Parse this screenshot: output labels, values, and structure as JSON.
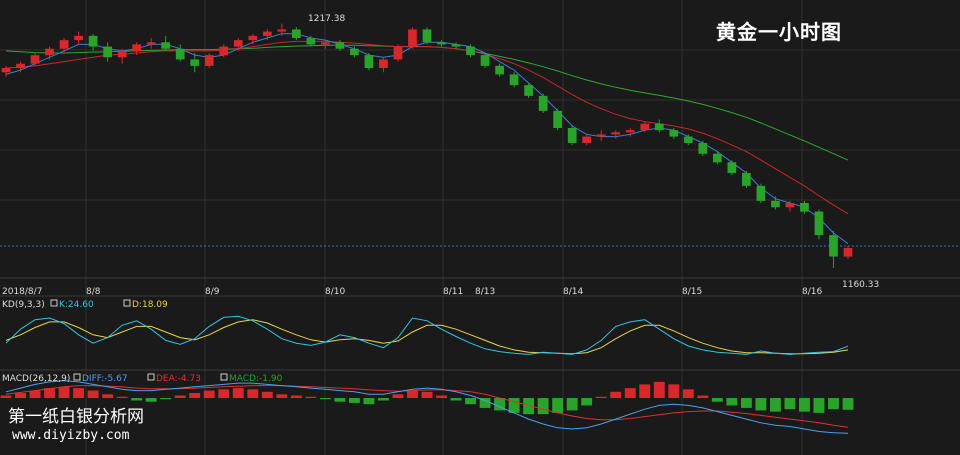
{
  "chart_title": "黄金一小时图",
  "watermark": {
    "name": "第一纸白银分析网",
    "url": "www.diyizby.com"
  },
  "colors": {
    "background": "#1a1a1a",
    "grid": "#2e2e2e",
    "up": "#d9282c",
    "down": "#29a329",
    "ma_fast": "#3a7fd8",
    "ma_mid": "#c8262a",
    "ma_slow": "#2fa82f",
    "k_line": "#34c4e0",
    "d_line": "#e8d44a",
    "diff_line": "#4aa0f0",
    "dea_line": "#e03030",
    "ref_line": "#3d6fb0",
    "axis_text": "#dddddd"
  },
  "chart_data": {
    "type": "candlestick",
    "x_dates": [
      "2018/8/7",
      "8/8",
      "8/9",
      "8/10",
      "8/11",
      "8/13",
      "8/14",
      "8/15",
      "8/16"
    ],
    "annotations": {
      "high_label": "1217.38",
      "low_label": "1160.33"
    },
    "price_ohlc": [
      [
        1206.0,
        1207.5,
        1205.0,
        1207.0
      ],
      [
        1207.0,
        1208.5,
        1206.0,
        1208.0
      ],
      [
        1208.0,
        1210.5,
        1207.5,
        1210.0
      ],
      [
        1210.0,
        1212.0,
        1209.0,
        1211.5
      ],
      [
        1211.5,
        1214.0,
        1210.5,
        1213.5
      ],
      [
        1213.5,
        1215.5,
        1212.5,
        1214.5
      ],
      [
        1214.5,
        1215.0,
        1211.0,
        1212.0
      ],
      [
        1212.0,
        1213.0,
        1208.5,
        1209.5
      ],
      [
        1209.5,
        1211.5,
        1208.0,
        1211.0
      ],
      [
        1211.0,
        1213.0,
        1210.0,
        1212.5
      ],
      [
        1212.5,
        1214.0,
        1211.5,
        1213.0
      ],
      [
        1213.0,
        1214.5,
        1211.0,
        1211.5
      ],
      [
        1211.5,
        1212.5,
        1208.5,
        1209.0
      ],
      [
        1209.0,
        1210.5,
        1206.0,
        1207.5
      ],
      [
        1207.5,
        1210.5,
        1207.0,
        1210.0
      ],
      [
        1210.0,
        1212.5,
        1209.5,
        1212.0
      ],
      [
        1212.0,
        1214.0,
        1211.0,
        1213.5
      ],
      [
        1213.5,
        1215.0,
        1212.5,
        1214.5
      ],
      [
        1214.5,
        1216.0,
        1213.5,
        1215.5
      ],
      [
        1215.5,
        1217.38,
        1214.5,
        1216.0
      ],
      [
        1216.0,
        1216.5,
        1213.5,
        1214.0
      ],
      [
        1214.0,
        1214.5,
        1212.0,
        1212.5
      ],
      [
        1212.5,
        1213.5,
        1211.5,
        1213.0
      ],
      [
        1213.0,
        1213.5,
        1211.0,
        1211.5
      ],
      [
        1211.5,
        1212.0,
        1209.5,
        1210.0
      ],
      [
        1210.0,
        1210.5,
        1206.5,
        1207.0
      ],
      [
        1207.0,
        1209.5,
        1206.0,
        1209.0
      ],
      [
        1209.0,
        1212.5,
        1208.5,
        1212.0
      ],
      [
        1212.0,
        1216.5,
        1211.5,
        1216.0
      ],
      [
        1216.0,
        1216.5,
        1212.5,
        1213.0
      ],
      [
        1213.0,
        1213.5,
        1212.0,
        1212.5
      ],
      [
        1212.5,
        1213.0,
        1211.5,
        1212.0
      ],
      [
        1212.0,
        1212.5,
        1209.5,
        1210.0
      ],
      [
        1210.0,
        1210.5,
        1207.0,
        1207.5
      ],
      [
        1207.5,
        1208.0,
        1205.0,
        1205.5
      ],
      [
        1205.5,
        1206.0,
        1202.5,
        1203.0
      ],
      [
        1203.0,
        1203.5,
        1200.0,
        1200.5
      ],
      [
        1200.5,
        1201.0,
        1196.5,
        1197.0
      ],
      [
        1197.0,
        1197.5,
        1192.5,
        1193.0
      ],
      [
        1193.0,
        1193.5,
        1189.0,
        1189.5
      ],
      [
        1189.5,
        1191.5,
        1189.0,
        1191.0
      ],
      [
        1191.0,
        1192.5,
        1190.0,
        1191.5
      ],
      [
        1191.5,
        1192.5,
        1190.5,
        1192.0
      ],
      [
        1192.0,
        1193.0,
        1191.0,
        1192.5
      ],
      [
        1192.5,
        1194.5,
        1192.0,
        1194.0
      ],
      [
        1194.0,
        1195.0,
        1192.0,
        1192.5
      ],
      [
        1192.5,
        1193.0,
        1190.5,
        1191.0
      ],
      [
        1191.0,
        1191.5,
        1189.0,
        1189.5
      ],
      [
        1189.5,
        1190.0,
        1186.5,
        1187.0
      ],
      [
        1187.0,
        1187.5,
        1184.5,
        1185.0
      ],
      [
        1185.0,
        1185.5,
        1182.0,
        1182.5
      ],
      [
        1182.5,
        1183.0,
        1179.0,
        1179.5
      ],
      [
        1179.5,
        1180.0,
        1175.5,
        1176.0
      ],
      [
        1176.0,
        1177.0,
        1174.0,
        1174.5
      ],
      [
        1174.5,
        1176.0,
        1173.5,
        1175.5
      ],
      [
        1175.5,
        1176.0,
        1173.0,
        1173.5
      ],
      [
        1173.5,
        1174.0,
        1167.0,
        1168.0
      ],
      [
        1168.0,
        1169.0,
        1160.33,
        1163.0
      ],
      [
        1163.0,
        1165.5,
        1162.5,
        1165.0
      ]
    ],
    "ma_fast": [
      1205.5,
      1206.5,
      1208.0,
      1209.5,
      1211.0,
      1212.5,
      1212.5,
      1211.5,
      1211.0,
      1211.5,
      1212.5,
      1212.5,
      1211.5,
      1210.0,
      1209.5,
      1210.0,
      1211.5,
      1213.0,
      1214.0,
      1215.0,
      1215.0,
      1214.0,
      1213.5,
      1212.5,
      1211.5,
      1210.0,
      1209.5,
      1210.0,
      1212.0,
      1213.0,
      1213.0,
      1212.5,
      1212.0,
      1210.5,
      1208.5,
      1206.5,
      1203.5,
      1200.5,
      1197.0,
      1193.5,
      1191.5,
      1191.0,
      1191.0,
      1191.5,
      1192.5,
      1193.0,
      1192.5,
      1191.0,
      1189.5,
      1187.5,
      1185.0,
      1182.5,
      1179.0,
      1176.5,
      1175.5,
      1174.5,
      1172.0,
      1168.5,
      1166.0
    ],
    "ma_mid": [
      1207.0,
      1207.2,
      1207.5,
      1208.0,
      1208.5,
      1209.0,
      1209.5,
      1210.0,
      1210.2,
      1210.5,
      1210.8,
      1211.0,
      1211.0,
      1211.0,
      1211.0,
      1211.2,
      1211.5,
      1212.0,
      1212.5,
      1213.0,
      1213.2,
      1213.2,
      1213.2,
      1213.0,
      1212.8,
      1212.5,
      1212.2,
      1212.0,
      1212.0,
      1212.0,
      1211.8,
      1211.5,
      1211.0,
      1210.2,
      1209.2,
      1208.0,
      1206.5,
      1204.8,
      1202.8,
      1200.8,
      1199.0,
      1197.5,
      1196.2,
      1195.2,
      1194.5,
      1194.0,
      1193.5,
      1192.8,
      1191.8,
      1190.5,
      1189.0,
      1187.5,
      1185.5,
      1183.5,
      1181.5,
      1179.5,
      1177.2,
      1175.0,
      1173.0
    ],
    "ma_slow": [
      1211.0,
      1210.8,
      1210.6,
      1210.5,
      1210.5,
      1210.6,
      1210.7,
      1210.8,
      1210.9,
      1211.0,
      1211.1,
      1211.2,
      1211.3,
      1211.3,
      1211.3,
      1211.4,
      1211.5,
      1211.6,
      1211.8,
      1212.0,
      1212.1,
      1212.2,
      1212.3,
      1212.3,
      1212.3,
      1212.2,
      1212.1,
      1212.0,
      1212.0,
      1212.0,
      1211.8,
      1211.5,
      1211.0,
      1210.4,
      1209.7,
      1209.0,
      1208.2,
      1207.3,
      1206.3,
      1205.2,
      1204.2,
      1203.3,
      1202.5,
      1201.8,
      1201.2,
      1200.6,
      1200.0,
      1199.3,
      1198.5,
      1197.6,
      1196.6,
      1195.5,
      1194.2,
      1192.8,
      1191.4,
      1190.0,
      1188.5,
      1187.0,
      1185.5
    ],
    "kd": {
      "label": "KD(9,3,3)",
      "k_label": "K:24.60",
      "d_label": "D:18.09",
      "k": [
        30,
        55,
        72,
        75,
        65,
        45,
        30,
        40,
        62,
        70,
        55,
        35,
        28,
        38,
        60,
        76,
        78,
        70,
        55,
        38,
        30,
        26,
        32,
        45,
        40,
        30,
        22,
        40,
        75,
        70,
        55,
        42,
        30,
        20,
        15,
        12,
        10,
        14,
        12,
        10,
        18,
        35,
        60,
        68,
        72,
        55,
        38,
        25,
        18,
        14,
        12,
        10,
        16,
        12,
        10,
        12,
        14,
        15,
        24.6
      ],
      "d": [
        35,
        45,
        58,
        68,
        68,
        58,
        45,
        40,
        50,
        60,
        60,
        50,
        40,
        36,
        45,
        58,
        68,
        72,
        66,
        55,
        45,
        36,
        32,
        36,
        38,
        35,
        30,
        34,
        50,
        62,
        62,
        55,
        45,
        35,
        25,
        18,
        14,
        13,
        12,
        11,
        13,
        22,
        38,
        52,
        62,
        62,
        52,
        40,
        30,
        22,
        16,
        13,
        13,
        12,
        11,
        11,
        12,
        14,
        18.09
      ]
    },
    "macd": {
      "label": "MACD(26,12,9)",
      "diff_label": "DIFF:-5.67",
      "dea_label": "DEA:-4.73",
      "macd_label": "MACD:-1.90",
      "hist": [
        0.4,
        0.8,
        1.2,
        1.6,
        1.8,
        1.6,
        1.2,
        0.6,
        0.2,
        -0.4,
        -0.6,
        -0.2,
        0.4,
        0.8,
        1.2,
        1.4,
        1.6,
        1.4,
        1.0,
        0.6,
        0.4,
        0.2,
        -0.2,
        -0.6,
        -0.8,
        -1.0,
        -0.4,
        0.6,
        1.2,
        1.0,
        0.4,
        -0.4,
        -1.0,
        -1.6,
        -2.0,
        -2.4,
        -2.6,
        -2.6,
        -2.4,
        -2.0,
        -1.2,
        0.2,
        1.0,
        1.6,
        2.2,
        2.6,
        2.2,
        1.4,
        0.4,
        -0.6,
        -1.2,
        -1.6,
        -2.0,
        -2.2,
        -1.8,
        -2.2,
        -2.4,
        -1.8,
        -1.9
      ],
      "diff": [
        1.0,
        1.6,
        2.2,
        2.6,
        2.8,
        2.6,
        2.2,
        1.8,
        1.4,
        1.2,
        1.2,
        1.4,
        1.6,
        1.8,
        2.0,
        2.2,
        2.4,
        2.4,
        2.2,
        2.0,
        1.8,
        1.6,
        1.4,
        1.2,
        1.0,
        0.6,
        0.6,
        1.0,
        1.4,
        1.6,
        1.4,
        1.0,
        0.4,
        -0.4,
        -1.4,
        -2.4,
        -3.4,
        -4.2,
        -4.8,
        -5.0,
        -4.8,
        -4.2,
        -3.4,
        -2.6,
        -1.8,
        -1.2,
        -1.0,
        -1.2,
        -1.6,
        -2.2,
        -2.8,
        -3.4,
        -4.0,
        -4.4,
        -4.6,
        -5.0,
        -5.4,
        -5.6,
        -5.67
      ],
      "dea": [
        0.6,
        0.9,
        1.2,
        1.5,
        1.8,
        2.0,
        2.0,
        1.9,
        1.8,
        1.6,
        1.5,
        1.5,
        1.5,
        1.6,
        1.7,
        1.8,
        1.9,
        2.0,
        2.0,
        2.0,
        1.9,
        1.8,
        1.7,
        1.6,
        1.5,
        1.3,
        1.2,
        1.1,
        1.2,
        1.3,
        1.3,
        1.2,
        1.0,
        0.6,
        0.0,
        -0.6,
        -1.2,
        -1.8,
        -2.4,
        -2.9,
        -3.3,
        -3.5,
        -3.5,
        -3.3,
        -3.0,
        -2.7,
        -2.4,
        -2.2,
        -2.1,
        -2.1,
        -2.3,
        -2.5,
        -2.8,
        -3.1,
        -3.4,
        -3.7,
        -4.0,
        -4.4,
        -4.73
      ]
    }
  }
}
